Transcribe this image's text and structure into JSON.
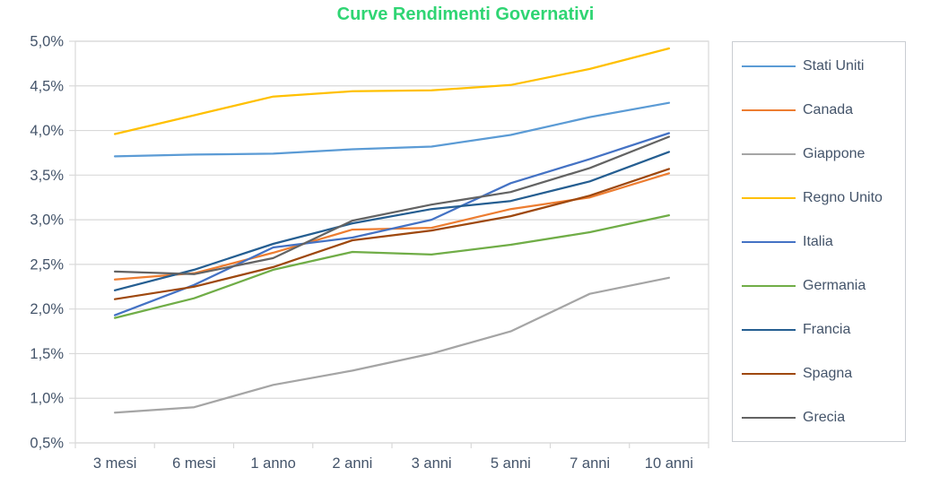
{
  "chart_data": {
    "type": "line",
    "title": "Curve Rendimenti Governativi",
    "title_color": "#2FD573",
    "axis_text_color": "#44546A",
    "grid_color": "#D9D9D9",
    "legend_border_color": "#C9CDD2",
    "legend_position": "right",
    "grid": true,
    "categories": [
      "3 mesi",
      "6 mesi",
      "1 anno",
      "2 anni",
      "3 anni",
      "5 anni",
      "7 anni",
      "10 anni"
    ],
    "y_axis": {
      "min": 0.5,
      "max": 5.0,
      "step": 0.5,
      "tick_labels": [
        "5,0%",
        "4,5%",
        "4,0%",
        "3,5%",
        "3,0%",
        "2,5%",
        "2,0%",
        "1,5%",
        "1,0%",
        "0,5%"
      ]
    },
    "series": [
      {
        "name": "Stati Uniti",
        "color": "#5B9BD5",
        "values": [
          3.71,
          3.73,
          3.74,
          3.79,
          3.82,
          3.95,
          4.15,
          4.31
        ]
      },
      {
        "name": "Canada",
        "color": "#ED7D31",
        "values": [
          2.33,
          2.4,
          2.63,
          2.89,
          2.91,
          3.12,
          3.25,
          3.52
        ]
      },
      {
        "name": "Giappone",
        "color": "#A5A5A5",
        "values": [
          0.84,
          0.9,
          1.15,
          1.31,
          1.5,
          1.75,
          2.17,
          2.35
        ]
      },
      {
        "name": "Regno Unito",
        "color": "#FFC000",
        "values": [
          3.96,
          4.17,
          4.38,
          4.44,
          4.45,
          4.51,
          4.69,
          4.92
        ]
      },
      {
        "name": "Italia",
        "color": "#4472C4",
        "values": [
          1.93,
          2.27,
          2.69,
          2.8,
          3.0,
          3.41,
          3.68,
          3.97
        ]
      },
      {
        "name": "Germania",
        "color": "#70AD47",
        "values": [
          1.9,
          2.12,
          2.44,
          2.64,
          2.61,
          2.72,
          2.86,
          3.05
        ]
      },
      {
        "name": "Francia",
        "color": "#255E91",
        "values": [
          2.21,
          2.44,
          2.73,
          2.96,
          3.12,
          3.21,
          3.43,
          3.76
        ]
      },
      {
        "name": "Spagna",
        "color": "#9E480E",
        "values": [
          2.11,
          2.25,
          2.47,
          2.77,
          2.88,
          3.04,
          3.27,
          3.57
        ]
      },
      {
        "name": "Grecia",
        "color": "#636363",
        "values": [
          2.42,
          2.39,
          2.57,
          2.99,
          3.17,
          3.31,
          3.58,
          3.93
        ]
      }
    ]
  }
}
